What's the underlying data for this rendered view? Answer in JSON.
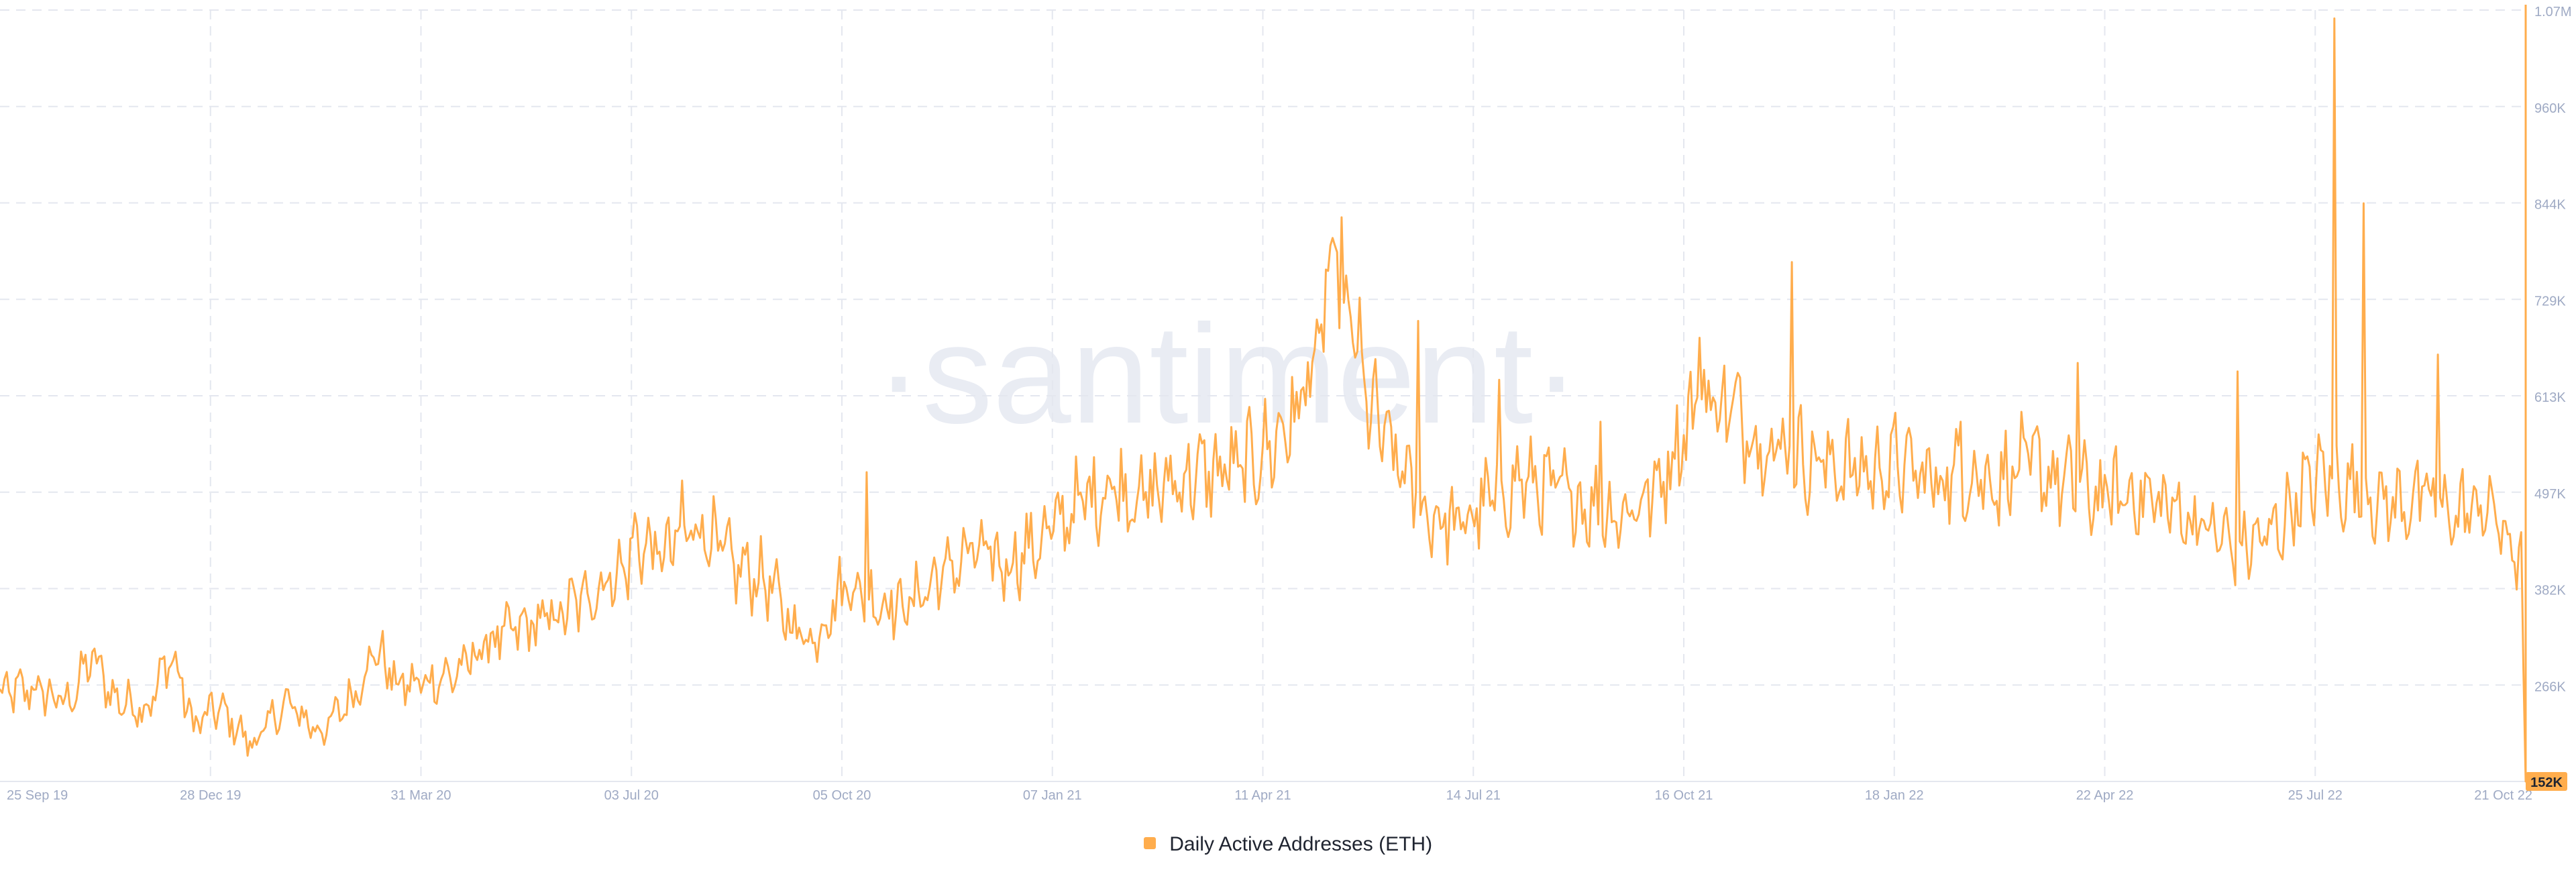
{
  "watermark": "·santiment·",
  "colors": {
    "series": "#ffad4d",
    "grid": "#e4e7ef",
    "tick_text": "#9faac4",
    "last_value_badge_bg": "#ffad4d",
    "last_value_badge_text": "#1f2430"
  },
  "chart_data": {
    "type": "line",
    "title": "",
    "xlabel": "",
    "ylabel": "",
    "legend_position": "bottom-center",
    "grid": true,
    "x_range": [
      "2019-09-25",
      "2022-10-21"
    ],
    "ylim": [
      152000,
      1070000
    ],
    "x_tick_labels": [
      "25 Sep 19",
      "28 Dec 19",
      "31 Mar 20",
      "03 Jul 20",
      "05 Oct 20",
      "07 Jan 21",
      "11 Apr 21",
      "14 Jul 21",
      "16 Oct 21",
      "18 Jan 22",
      "22 Apr 22",
      "25 Jul 22",
      "21 Oct 22"
    ],
    "y_tick_labels": [
      "1.07M",
      "960K",
      "844K",
      "729K",
      "613K",
      "497K",
      "382K",
      "266K"
    ],
    "last_value_label": "152K",
    "series": [
      {
        "name": "Daily Active Addresses (ETH)",
        "points": [
          [
            "2019-09-25",
            255000
          ],
          [
            "2019-10-10",
            262000
          ],
          [
            "2019-10-25",
            245000
          ],
          [
            "2019-11-05",
            300000
          ],
          [
            "2019-11-15",
            250000
          ],
          [
            "2019-11-30",
            240000
          ],
          [
            "2019-12-10",
            305000
          ],
          [
            "2019-12-20",
            218000
          ],
          [
            "2019-12-31",
            240000
          ],
          [
            "2020-01-15",
            195000
          ],
          [
            "2020-01-30",
            245000
          ],
          [
            "2020-02-15",
            210000
          ],
          [
            "2020-02-29",
            255000
          ],
          [
            "2020-03-10",
            310000
          ],
          [
            "2020-03-20",
            265000
          ],
          [
            "2020-03-31",
            270000
          ],
          [
            "2020-04-15",
            280000
          ],
          [
            "2020-04-30",
            320000
          ],
          [
            "2020-05-15",
            335000
          ],
          [
            "2020-05-31",
            350000
          ],
          [
            "2020-06-15",
            380000
          ],
          [
            "2020-06-30",
            410000
          ],
          [
            "2020-07-03",
            440000
          ],
          [
            "2020-07-15",
            420000
          ],
          [
            "2020-07-31",
            460000
          ],
          [
            "2020-08-15",
            410000
          ],
          [
            "2020-08-31",
            390000
          ],
          [
            "2020-09-10",
            340000
          ],
          [
            "2020-09-20",
            320000
          ],
          [
            "2020-10-05",
            390000
          ],
          [
            "2020-10-15",
            370000
          ],
          [
            "2020-10-31",
            360000
          ],
          [
            "2020-11-15",
            395000
          ],
          [
            "2020-11-30",
            425000
          ],
          [
            "2020-12-15",
            410000
          ],
          [
            "2020-12-31",
            440000
          ],
          [
            "2021-01-15",
            480000
          ],
          [
            "2021-01-31",
            505000
          ],
          [
            "2021-02-15",
            490000
          ],
          [
            "2021-02-28",
            510000
          ],
          [
            "2021-03-15",
            520000
          ],
          [
            "2021-03-31",
            525000
          ],
          [
            "2021-04-15",
            560000
          ],
          [
            "2021-04-30",
            640000
          ],
          [
            "2021-05-05",
            700000
          ],
          [
            "2021-05-10",
            770000
          ],
          [
            "2021-05-15",
            720000
          ],
          [
            "2021-05-25",
            600000
          ],
          [
            "2021-06-05",
            540000
          ],
          [
            "2021-06-20",
            470000
          ],
          [
            "2021-07-05",
            455000
          ],
          [
            "2021-07-14",
            480000
          ],
          [
            "2021-07-31",
            510000
          ],
          [
            "2021-08-15",
            500000
          ],
          [
            "2021-08-31",
            480000
          ],
          [
            "2021-09-15",
            470000
          ],
          [
            "2021-09-30",
            500000
          ],
          [
            "2021-10-10",
            560000
          ],
          [
            "2021-10-20",
            610000
          ],
          [
            "2021-10-31",
            600000
          ],
          [
            "2021-11-15",
            560000
          ],
          [
            "2021-11-30",
            540000
          ],
          [
            "2021-12-15",
            530000
          ],
          [
            "2021-12-31",
            520000
          ],
          [
            "2022-01-15",
            530000
          ],
          [
            "2022-01-31",
            510000
          ],
          [
            "2022-02-15",
            520000
          ],
          [
            "2022-02-28",
            510000
          ],
          [
            "2022-03-15",
            530000
          ],
          [
            "2022-03-31",
            505000
          ],
          [
            "2022-04-15",
            490000
          ],
          [
            "2022-04-30",
            495000
          ],
          [
            "2022-05-15",
            480000
          ],
          [
            "2022-05-31",
            455000
          ],
          [
            "2022-06-15",
            430000
          ],
          [
            "2022-06-30",
            445000
          ],
          [
            "2022-07-15",
            500000
          ],
          [
            "2022-07-25",
            520000
          ],
          [
            "2022-08-05",
            500000
          ],
          [
            "2022-08-20",
            480000
          ],
          [
            "2022-09-05",
            490000
          ],
          [
            "2022-09-20",
            470000
          ],
          [
            "2022-10-05",
            480000
          ],
          [
            "2022-10-14",
            430000
          ],
          [
            "2022-10-19",
            420000
          ],
          [
            "2022-10-21",
            152000
          ]
        ],
        "spikes": [
          [
            "2020-07-24",
            510000
          ],
          [
            "2020-10-14",
            520000
          ],
          [
            "2021-04-22",
            580000
          ],
          [
            "2021-05-08",
            790000
          ],
          [
            "2021-06-16",
            700000
          ],
          [
            "2021-07-22",
            630000
          ],
          [
            "2021-09-05",
            580000
          ],
          [
            "2021-10-19",
            680000
          ],
          [
            "2021-11-29",
            770000
          ],
          [
            "2022-02-12",
            580000
          ],
          [
            "2022-04-05",
            650000
          ],
          [
            "2022-06-15",
            640000
          ],
          [
            "2022-07-28",
            1060000
          ],
          [
            "2022-08-10",
            840000
          ],
          [
            "2022-09-12",
            660000
          ]
        ]
      }
    ]
  }
}
